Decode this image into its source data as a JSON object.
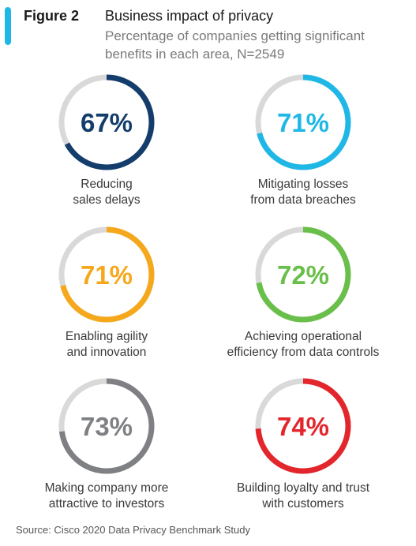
{
  "header": {
    "figure_label": "Figure 2",
    "title": "Business impact of privacy",
    "subtitle": "Percentage of companies getting significant benefits in each area, N=2549"
  },
  "chart_data": {
    "type": "donut",
    "title": "Business impact of privacy",
    "subtitle": "Percentage of companies getting significant benefits in each area, N=2549",
    "unit": "%",
    "max": 100,
    "track_color": "#d9d9d9",
    "items": [
      {
        "value": 67,
        "display": "67%",
        "label_lines": [
          "Reducing",
          "sales delays"
        ],
        "color": "#143d6b"
      },
      {
        "value": 71,
        "display": "71%",
        "label_lines": [
          "Mitigating losses",
          "from data breaches"
        ],
        "color": "#1fb8e6"
      },
      {
        "value": 71,
        "display": "71%",
        "label_lines": [
          "Enabling agility",
          "and innovation"
        ],
        "color": "#f5a81c"
      },
      {
        "value": 72,
        "display": "72%",
        "label_lines": [
          "Achieving operational",
          "efficiency from data controls"
        ],
        "color": "#6abf4b"
      },
      {
        "value": 73,
        "display": "73%",
        "label_lines": [
          "Making company more",
          "attractive to investors"
        ],
        "color": "#7f8083"
      },
      {
        "value": 74,
        "display": "74%",
        "label_lines": [
          "Building loyalty and trust",
          "with customers"
        ],
        "color": "#e3262b"
      }
    ]
  },
  "source": "Source:  Cisco 2020 Data Privacy Benchmark Study"
}
